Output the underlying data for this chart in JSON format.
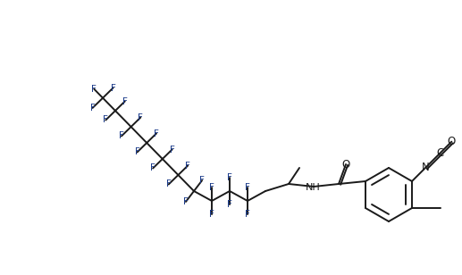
{
  "bg_color": "#ffffff",
  "line_color": "#1a1a1a",
  "F_color": "#1a3a8a",
  "atom_color": "#1a1a1a",
  "lw": 1.4,
  "figsize": [
    5.17,
    3.08
  ],
  "dpi": 100,
  "xlim": [
    0,
    517
  ],
  "ylim": [
    0,
    308
  ]
}
